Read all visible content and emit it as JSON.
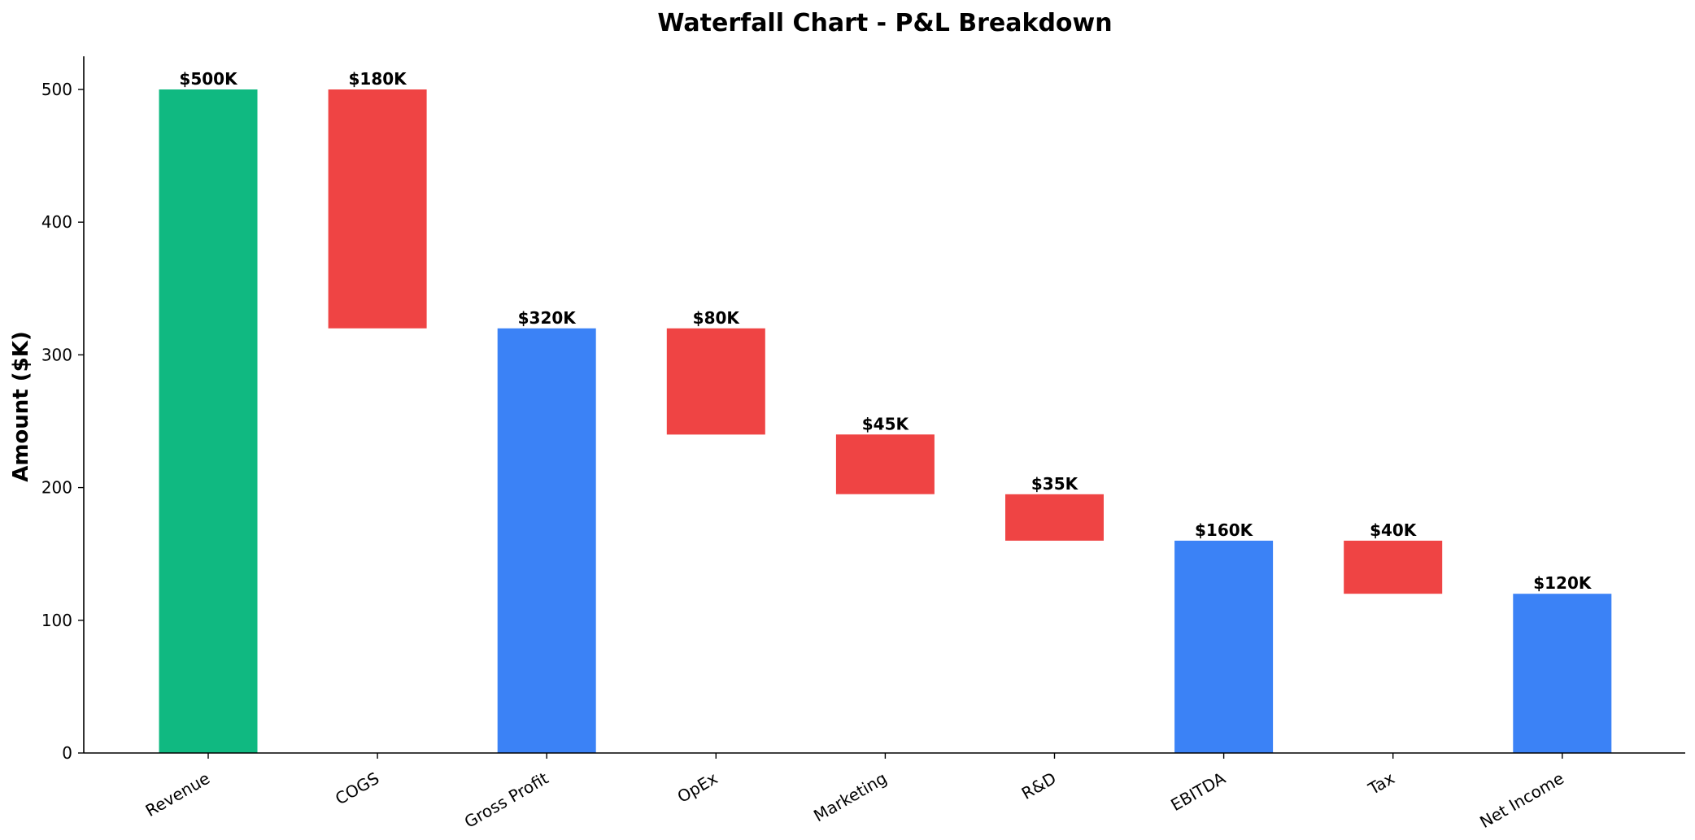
{
  "chart_data": {
    "type": "bar",
    "subtype": "waterfall",
    "title": "Waterfall Chart - P&L Breakdown",
    "xlabel": "",
    "ylabel": "Amount ($K)",
    "ylim": [
      0,
      525
    ],
    "yticks": [
      0,
      100,
      200,
      300,
      400,
      500
    ],
    "grid": false,
    "legend": "none",
    "colors": {
      "start": "#10b981",
      "decrease": "#ef4444",
      "subtotal": "#3b82f6"
    },
    "bars": [
      {
        "category": "Revenue",
        "kind": "start",
        "base": 0,
        "value": 500,
        "label": "$500K"
      },
      {
        "category": "COGS",
        "kind": "decrease",
        "base": 320,
        "value": 180,
        "label": "$180K"
      },
      {
        "category": "Gross Profit",
        "kind": "subtotal",
        "base": 0,
        "value": 320,
        "label": "$320K"
      },
      {
        "category": "OpEx",
        "kind": "decrease",
        "base": 240,
        "value": 80,
        "label": "$80K"
      },
      {
        "category": "Marketing",
        "kind": "decrease",
        "base": 195,
        "value": 45,
        "label": "$45K"
      },
      {
        "category": "R&D",
        "kind": "decrease",
        "base": 160,
        "value": 35,
        "label": "$35K"
      },
      {
        "category": "EBITDA",
        "kind": "subtotal",
        "base": 0,
        "value": 160,
        "label": "$160K"
      },
      {
        "category": "Tax",
        "kind": "decrease",
        "base": 120,
        "value": 40,
        "label": "$40K"
      },
      {
        "category": "Net Income",
        "kind": "subtotal",
        "base": 0,
        "value": 120,
        "label": "$120K"
      }
    ]
  }
}
